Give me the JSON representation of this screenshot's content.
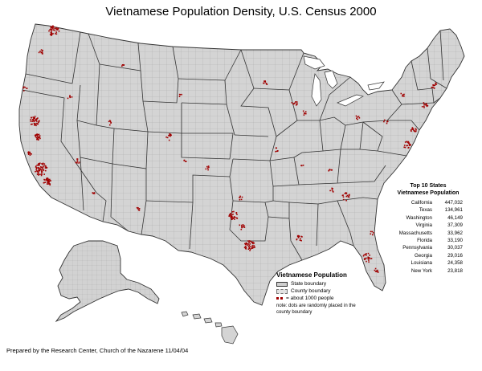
{
  "title": "Vietnamese Population Density, U.S. Census 2000",
  "top10": {
    "heading_line1": "Top 10 States",
    "heading_line2": "Vietnamese Population",
    "rows": [
      {
        "state": "California",
        "value": "447,032"
      },
      {
        "state": "Texas",
        "value": "134,961"
      },
      {
        "state": "Washington",
        "value": "46,149"
      },
      {
        "state": "Virginia",
        "value": "37,309"
      },
      {
        "state": "Massachusetts",
        "value": "33,962"
      },
      {
        "state": "Florida",
        "value": "33,190"
      },
      {
        "state": "Pennsylvania",
        "value": "30,037"
      },
      {
        "state": "Georgia",
        "value": "29,016"
      },
      {
        "state": "Louisiana",
        "value": "24,358"
      },
      {
        "state": "New York",
        "value": "23,818"
      }
    ]
  },
  "legend": {
    "title": "Vietnamese Population",
    "state_boundary": "State boundary",
    "county_boundary": "County boundary",
    "dot_label": "= about 1000 people",
    "note": "note: dots are randomly placed in the county boundary"
  },
  "credit": "Prepared by the Research Center, Church of the Nazarene  11/04/04",
  "colors": {
    "land": "#d4d4d4",
    "dot": "#a00000",
    "state_line": "#333333",
    "county_line": "#9a9a9a"
  }
}
